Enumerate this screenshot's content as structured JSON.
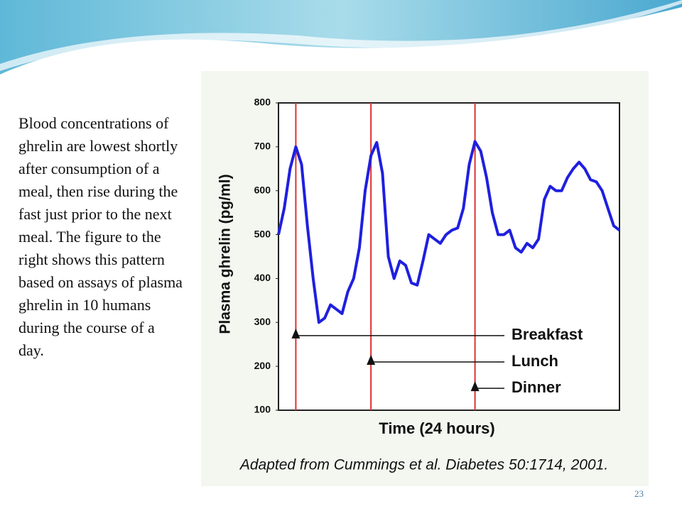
{
  "slide": {
    "text": "Blood concentrations of ghrelin are lowest shortly after consumption of a meal, then rise during the fast just prior to the next meal. The figure to the right shows this pattern based on assays of plasma ghrelin in 10 humans during the course of a day.",
    "page_number": "23"
  },
  "chart_data": {
    "type": "line",
    "y_label": "Plasma ghrelin (pg/ml)",
    "x_label": "Time (24 hours)",
    "caption": "Adapted from Cummings et al.  Diabetes 50:1714, 2001.",
    "categories": [
      null,
      null,
      null,
      null,
      null,
      null,
      null,
      null,
      null,
      null,
      null,
      null,
      null,
      null,
      null,
      null,
      null,
      null,
      null,
      null,
      null,
      null,
      null,
      null,
      null,
      null,
      null,
      null,
      null,
      null,
      null,
      null,
      null,
      null,
      null,
      null,
      null,
      null,
      null,
      null,
      null,
      null,
      null,
      null,
      null,
      null,
      null,
      null,
      null,
      null,
      null,
      null,
      null,
      null,
      null,
      null,
      null,
      null,
      null,
      null
    ],
    "values": [
      500,
      560,
      650,
      700,
      660,
      520,
      400,
      300,
      310,
      340,
      330,
      320,
      370,
      400,
      470,
      600,
      680,
      710,
      640,
      450,
      400,
      440,
      430,
      390,
      385,
      440,
      500,
      490,
      480,
      500,
      510,
      515,
      560,
      660,
      712,
      690,
      630,
      550,
      500,
      500,
      510,
      470,
      460,
      480,
      470,
      490,
      580,
      610,
      600,
      600,
      630,
      650,
      665,
      650,
      625,
      620,
      600,
      560,
      520,
      510
    ],
    "color": "#1f1fe0",
    "ylim": [
      100,
      800
    ],
    "yticks": [
      100,
      200,
      300,
      400,
      500,
      600,
      700,
      800
    ],
    "meals": [
      {
        "name": "Breakfast",
        "index": 3,
        "level": 270
      },
      {
        "name": "Lunch",
        "index": 16,
        "level": 210
      },
      {
        "name": "Dinner",
        "index": 34,
        "level": 150
      }
    ],
    "meal_line_color": "#e03030"
  }
}
